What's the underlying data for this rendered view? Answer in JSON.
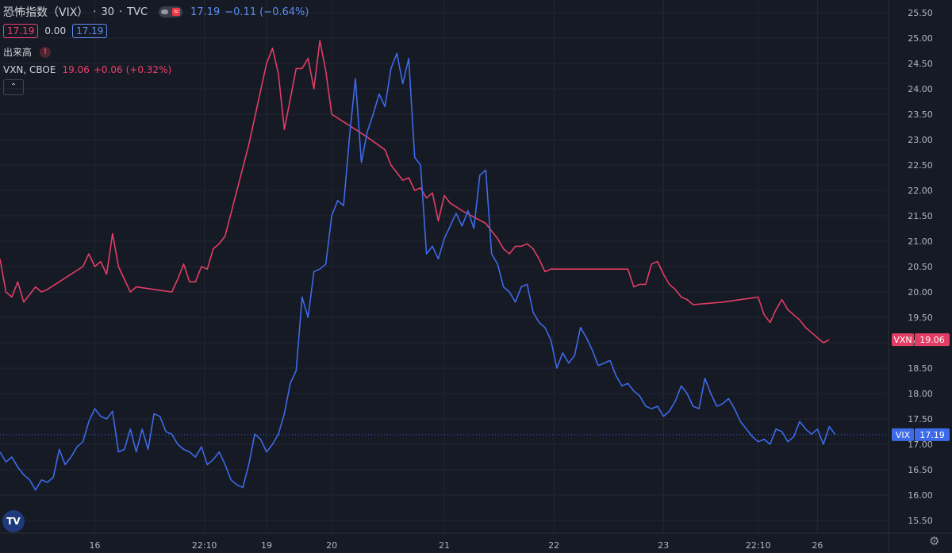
{
  "header": {
    "title": "恐怖指数（VIX）",
    "interval": "30",
    "source": "TVC",
    "last": "17.19",
    "change": "−0.11",
    "change_pct": "(−0.64%)",
    "ohlc_box_1": "17.19",
    "ohlc_mid": "0.00",
    "ohlc_box_2": "17.19",
    "volume_label": "出来高",
    "compare_symbol": "VXN, CBOE",
    "compare_last": "19.06",
    "compare_change": "+0.06",
    "compare_change_pct": "(+0.32%)"
  },
  "labels": {
    "vxn_tag": "VXN",
    "vxn_value": "19.06",
    "vix_tag": "VIX",
    "vix_value": "17.19"
  },
  "colors": {
    "vix": "#3d6ae8",
    "vxn": "#e23d64",
    "grid": "#232733",
    "background": "#161a25"
  },
  "icons": [
    "toggle-pill-icon",
    "warning-icon",
    "collapse-chevron-icon",
    "tradingview-logo-icon",
    "settings-gear-icon"
  ],
  "chart_data": {
    "type": "line",
    "ylim": [
      15.25,
      25.75
    ],
    "y_ticks": [
      "15.50",
      "16.00",
      "16.50",
      "17.00",
      "17.50",
      "18.00",
      "18.50",
      "19.00",
      "19.50",
      "20.00",
      "20.50",
      "21.00",
      "21.50",
      "22.00",
      "22.50",
      "23.00",
      "23.50",
      "24.00",
      "24.50",
      "25.00",
      "25.50"
    ],
    "x_ticks": [
      "16",
      "22:10",
      "19",
      "20",
      "21",
      "22",
      "23",
      "22:10",
      "26"
    ],
    "x_tick_pos": [
      16,
      34.5,
      45,
      56,
      75,
      93.5,
      112,
      128,
      138
    ],
    "x_range": [
      0,
      150
    ],
    "series": [
      {
        "name": "VIX",
        "values": [
          [
            0,
            16.85
          ],
          [
            1,
            16.65
          ],
          [
            2,
            16.75
          ],
          [
            3,
            16.55
          ],
          [
            4,
            16.4
          ],
          [
            5,
            16.3
          ],
          [
            6,
            16.1
          ],
          [
            7,
            16.3
          ],
          [
            8,
            16.25
          ],
          [
            9,
            16.35
          ],
          [
            10,
            16.9
          ],
          [
            11,
            16.6
          ],
          [
            12,
            16.75
          ],
          [
            13,
            16.95
          ],
          [
            14,
            17.05
          ],
          [
            15,
            17.45
          ],
          [
            16,
            17.7
          ],
          [
            17,
            17.55
          ],
          [
            18,
            17.5
          ],
          [
            19,
            17.65
          ],
          [
            20,
            16.85
          ],
          [
            21,
            16.9
          ],
          [
            22,
            17.3
          ],
          [
            23,
            16.85
          ],
          [
            24,
            17.3
          ],
          [
            25,
            16.9
          ],
          [
            26,
            17.6
          ],
          [
            27,
            17.55
          ],
          [
            28,
            17.25
          ],
          [
            29,
            17.2
          ],
          [
            30,
            17.0
          ],
          [
            31,
            16.9
          ],
          [
            32,
            16.85
          ],
          [
            33,
            16.75
          ],
          [
            34,
            16.95
          ],
          [
            35,
            16.6
          ],
          [
            36,
            16.7
          ],
          [
            37,
            16.85
          ],
          [
            38,
            16.6
          ],
          [
            39,
            16.3
          ],
          [
            40,
            16.2
          ],
          [
            41,
            16.15
          ],
          [
            42,
            16.6
          ],
          [
            43,
            17.2
          ],
          [
            44,
            17.1
          ],
          [
            45,
            16.85
          ],
          [
            46,
            17.0
          ],
          [
            47,
            17.2
          ],
          [
            48,
            17.6
          ],
          [
            49,
            18.2
          ],
          [
            50,
            18.45
          ],
          [
            51,
            19.9
          ],
          [
            52,
            19.5
          ],
          [
            53,
            20.4
          ],
          [
            54,
            20.45
          ],
          [
            55,
            20.55
          ],
          [
            56,
            21.5
          ],
          [
            57,
            21.8
          ],
          [
            58,
            21.7
          ],
          [
            59,
            23.05
          ],
          [
            60,
            24.2
          ],
          [
            61,
            22.55
          ],
          [
            62,
            23.15
          ],
          [
            63,
            23.5
          ],
          [
            64,
            23.9
          ],
          [
            65,
            23.65
          ],
          [
            66,
            24.4
          ],
          [
            67,
            24.7
          ],
          [
            68,
            24.1
          ],
          [
            69,
            24.6
          ],
          [
            70,
            22.65
          ],
          [
            71,
            22.5
          ],
          [
            72,
            20.75
          ],
          [
            73,
            20.9
          ],
          [
            74,
            20.65
          ],
          [
            75,
            21.05
          ],
          [
            76,
            21.3
          ],
          [
            77,
            21.55
          ],
          [
            78,
            21.3
          ],
          [
            79,
            21.6
          ],
          [
            80,
            21.25
          ],
          [
            81,
            22.3
          ],
          [
            82,
            22.4
          ],
          [
            83,
            20.75
          ],
          [
            84,
            20.55
          ],
          [
            85,
            20.1
          ],
          [
            86,
            20.0
          ],
          [
            87,
            19.8
          ],
          [
            88,
            20.1
          ],
          [
            89,
            20.15
          ],
          [
            90,
            19.6
          ],
          [
            91,
            19.4
          ],
          [
            92,
            19.3
          ],
          [
            93,
            19.05
          ],
          [
            94,
            18.5
          ],
          [
            95,
            18.8
          ],
          [
            96,
            18.6
          ],
          [
            97,
            18.75
          ],
          [
            98,
            19.3
          ],
          [
            99,
            19.1
          ],
          [
            100,
            18.85
          ],
          [
            101,
            18.55
          ],
          [
            102,
            18.6
          ],
          [
            103,
            18.65
          ],
          [
            104,
            18.35
          ],
          [
            105,
            18.15
          ],
          [
            106,
            18.2
          ],
          [
            107,
            18.05
          ],
          [
            108,
            17.95
          ],
          [
            109,
            17.75
          ],
          [
            110,
            17.7
          ],
          [
            111,
            17.75
          ],
          [
            112,
            17.55
          ],
          [
            113,
            17.65
          ],
          [
            114,
            17.85
          ],
          [
            115,
            18.15
          ],
          [
            116,
            18.0
          ],
          [
            117,
            17.75
          ],
          [
            118,
            17.7
          ],
          [
            119,
            18.3
          ],
          [
            120,
            18.0
          ],
          [
            121,
            17.75
          ],
          [
            122,
            17.8
          ],
          [
            123,
            17.9
          ],
          [
            124,
            17.7
          ],
          [
            125,
            17.45
          ],
          [
            126,
            17.3
          ],
          [
            127,
            17.15
          ],
          [
            128,
            17.05
          ],
          [
            129,
            17.1
          ],
          [
            130,
            17.0
          ],
          [
            131,
            17.3
          ],
          [
            132,
            17.25
          ],
          [
            133,
            17.05
          ],
          [
            134,
            17.15
          ],
          [
            135,
            17.45
          ],
          [
            136,
            17.3
          ],
          [
            137,
            17.2
          ],
          [
            138,
            17.3
          ],
          [
            139,
            17.0
          ],
          [
            140,
            17.35
          ],
          [
            141,
            17.19
          ]
        ]
      },
      {
        "name": "VXN",
        "values": [
          [
            0,
            20.65
          ],
          [
            1,
            20.0
          ],
          [
            2,
            19.9
          ],
          [
            3,
            20.2
          ],
          [
            4,
            19.8
          ],
          [
            5,
            19.95
          ],
          [
            6,
            20.1
          ],
          [
            7,
            20.0
          ],
          [
            8,
            20.05
          ],
          [
            10,
            20.2
          ],
          [
            12,
            20.35
          ],
          [
            14,
            20.5
          ],
          [
            15,
            20.75
          ],
          [
            16,
            20.5
          ],
          [
            17,
            20.6
          ],
          [
            18,
            20.35
          ],
          [
            19,
            21.15
          ],
          [
            20,
            20.5
          ],
          [
            21,
            20.25
          ],
          [
            22,
            20.0
          ],
          [
            23,
            20.1
          ],
          [
            26,
            20.05
          ],
          [
            29,
            20.0
          ],
          [
            30,
            20.25
          ],
          [
            31,
            20.55
          ],
          [
            32,
            20.2
          ],
          [
            33,
            20.2
          ],
          [
            34,
            20.5
          ],
          [
            35,
            20.45
          ],
          [
            36,
            20.85
          ],
          [
            37,
            20.95
          ],
          [
            38,
            21.1
          ],
          [
            42,
            22.9
          ],
          [
            45,
            24.5
          ],
          [
            46,
            24.8
          ],
          [
            47,
            24.3
          ],
          [
            48,
            23.2
          ],
          [
            49,
            23.8
          ],
          [
            50,
            24.4
          ],
          [
            51,
            24.4
          ],
          [
            52,
            24.6
          ],
          [
            53,
            24.0
          ],
          [
            54,
            24.95
          ],
          [
            55,
            24.35
          ],
          [
            56,
            23.5
          ],
          [
            58,
            23.35
          ],
          [
            62,
            23.05
          ],
          [
            65,
            22.8
          ],
          [
            66,
            22.5
          ],
          [
            67,
            22.35
          ],
          [
            68,
            22.2
          ],
          [
            69,
            22.25
          ],
          [
            70,
            22.0
          ],
          [
            71,
            22.05
          ],
          [
            72,
            21.85
          ],
          [
            73,
            21.95
          ],
          [
            74,
            21.4
          ],
          [
            75,
            21.9
          ],
          [
            76,
            21.75
          ],
          [
            78,
            21.6
          ],
          [
            82,
            21.35
          ],
          [
            84,
            21.05
          ],
          [
            85,
            20.85
          ],
          [
            86,
            20.75
          ],
          [
            87,
            20.9
          ],
          [
            88,
            20.9
          ],
          [
            89,
            20.95
          ],
          [
            90,
            20.85
          ],
          [
            91,
            20.65
          ],
          [
            92,
            20.4
          ],
          [
            93,
            20.45
          ],
          [
            99,
            20.45
          ],
          [
            106,
            20.45
          ],
          [
            107,
            20.1
          ],
          [
            108,
            20.15
          ],
          [
            109,
            20.15
          ],
          [
            110,
            20.55
          ],
          [
            111,
            20.6
          ],
          [
            112,
            20.35
          ],
          [
            113,
            20.15
          ],
          [
            114,
            20.05
          ],
          [
            115,
            19.9
          ],
          [
            116,
            19.85
          ],
          [
            117,
            19.75
          ],
          [
            122,
            19.8
          ],
          [
            128,
            19.9
          ],
          [
            129,
            19.55
          ],
          [
            130,
            19.4
          ],
          [
            131,
            19.65
          ],
          [
            132,
            19.85
          ],
          [
            133,
            19.65
          ],
          [
            134,
            19.55
          ],
          [
            135,
            19.45
          ],
          [
            136,
            19.3
          ],
          [
            137,
            19.2
          ],
          [
            138,
            19.1
          ],
          [
            139,
            19.0
          ],
          [
            140,
            19.06
          ]
        ]
      }
    ],
    "current_price": 17.19
  }
}
